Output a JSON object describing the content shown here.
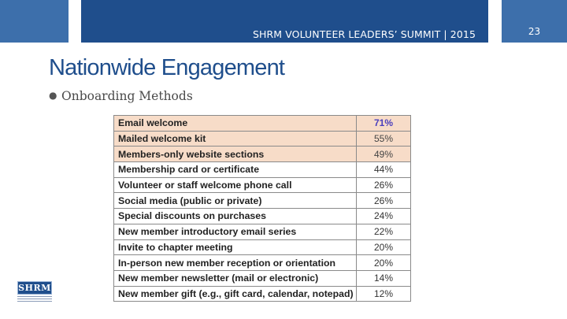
{
  "header": {
    "summit_title": "SHRM VOLUNTEER LEADERS’ SUMMIT  |  2015",
    "page_number": "23"
  },
  "slide": {
    "title": "Nationwide Engagement",
    "bullet": "Onboarding Methods"
  },
  "table": {
    "rows": [
      {
        "label": "Email welcome",
        "value": "71%",
        "highlight": true
      },
      {
        "label": "Mailed welcome kit",
        "value": "55%",
        "highlight": true
      },
      {
        "label": "Members-only website sections",
        "value": "49%",
        "highlight": true
      },
      {
        "label": "Membership card or certificate",
        "value": "44%",
        "highlight": false
      },
      {
        "label": "Volunteer or staff welcome phone call",
        "value": "26%",
        "highlight": false
      },
      {
        "label": "Social media (public or private)",
        "value": "26%",
        "highlight": false
      },
      {
        "label": "Special discounts on purchases",
        "value": "24%",
        "highlight": false
      },
      {
        "label": "New member introductory email series",
        "value": "22%",
        "highlight": false
      },
      {
        "label": "Invite to chapter meeting",
        "value": "20%",
        "highlight": false
      },
      {
        "label": "In-person new member reception or orientation",
        "value": "20%",
        "highlight": false
      },
      {
        "label": "New member newsletter (mail or electronic)",
        "value": "14%",
        "highlight": false
      },
      {
        "label": "New member gift (e.g., gift card, calendar, notepad)",
        "value": "12%",
        "highlight": false
      }
    ]
  },
  "logo": {
    "text": "SHRM"
  },
  "colors": {
    "banner": "#1f4e8c",
    "side_blocks": "#3d6fab",
    "highlight_rows": "#f7dcc8"
  }
}
